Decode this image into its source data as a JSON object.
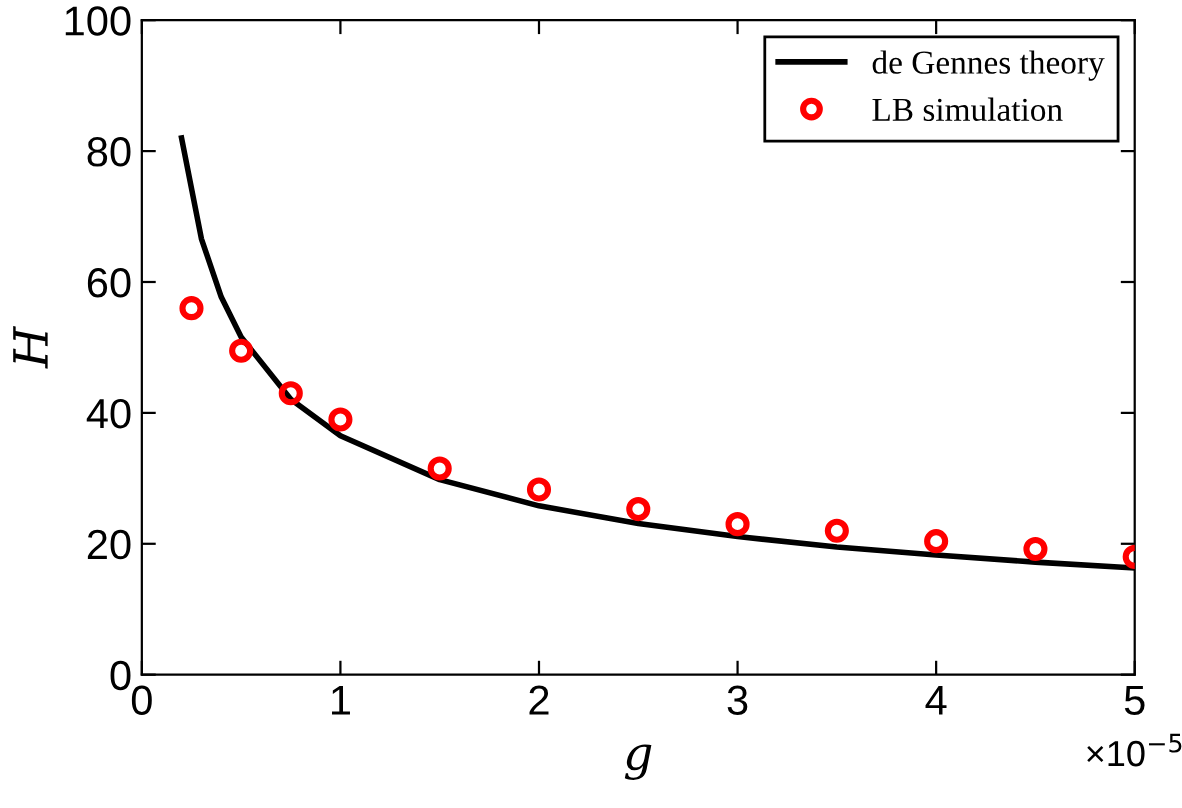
{
  "chart_data": {
    "type": "line",
    "xlabel": "g",
    "ylabel": "H",
    "series": [
      {
        "name": "de Gennes theory",
        "color": "#000000",
        "line_style": "solid",
        "marker": "none",
        "x": [
          0.2,
          0.3,
          0.4,
          0.5,
          0.75,
          1,
          1.5,
          2,
          2.5,
          3,
          3.5,
          4,
          4.5,
          5
        ],
        "values": [
          82,
          66.6,
          57.7,
          51.6,
          42.1,
          36.5,
          29.8,
          25.8,
          23.1,
          21.1,
          19.5,
          18.3,
          17.2,
          16.3
        ]
      },
      {
        "name": "LB simulation",
        "type": "scatter",
        "color": "#ff0000",
        "marker": "circle",
        "x": [
          0.25,
          0.5,
          0.75,
          1,
          1.5,
          2,
          2.5,
          3,
          3.5,
          4,
          4.5,
          5
        ],
        "values": [
          56,
          49.5,
          43,
          39,
          31.5,
          28.3,
          25.3,
          23,
          22,
          20.4,
          19.2,
          18
        ]
      }
    ],
    "xlim": [
      0,
      5
    ],
    "xticks": [
      0,
      1,
      2,
      3,
      4,
      5
    ],
    "ylim": [
      0,
      100
    ],
    "yticks": [
      0,
      20,
      40,
      60,
      80,
      100
    ],
    "annotations": [
      "×10$^{−5}$"
    ],
    "legend": "top right",
    "grid": false
  }
}
